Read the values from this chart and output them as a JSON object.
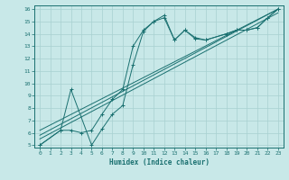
{
  "xlabel": "Humidex (Indice chaleur)",
  "bg_color": "#c8e8e8",
  "line_color": "#1a7070",
  "grid_color": "#a8d0d0",
  "xlim": [
    -0.5,
    23.5
  ],
  "ylim": [
    4.8,
    16.3
  ],
  "xticks": [
    0,
    1,
    2,
    3,
    4,
    5,
    6,
    7,
    8,
    9,
    10,
    11,
    12,
    13,
    14,
    15,
    16,
    17,
    18,
    19,
    20,
    21,
    22,
    23
  ],
  "yticks": [
    5,
    6,
    7,
    8,
    9,
    10,
    11,
    12,
    13,
    14,
    15,
    16
  ],
  "line1_x": [
    0,
    2,
    3,
    4,
    5,
    6,
    7,
    8,
    9,
    10,
    11,
    12,
    13,
    14,
    15,
    16,
    18,
    19,
    20,
    21,
    22,
    23
  ],
  "line1_y": [
    5,
    6.2,
    6.2,
    6.0,
    6.2,
    7.5,
    8.7,
    9.5,
    13.0,
    14.3,
    15.0,
    15.5,
    13.5,
    14.3,
    13.7,
    13.5,
    14.0,
    14.3,
    14.3,
    14.5,
    15.3,
    16.0
  ],
  "line2_x": [
    0,
    2,
    3,
    5,
    6,
    7,
    8,
    9,
    10,
    11,
    12,
    13,
    14,
    15,
    16,
    18,
    19,
    20,
    21,
    22,
    23
  ],
  "line2_y": [
    5,
    6.2,
    9.5,
    5.0,
    6.3,
    7.5,
    8.2,
    11.5,
    14.2,
    15.0,
    15.3,
    13.5,
    14.3,
    13.6,
    13.5,
    14.0,
    14.3,
    14.3,
    14.5,
    15.3,
    16.0
  ],
  "line3_x": [
    0,
    23
  ],
  "line3_y": [
    5.5,
    15.7
  ],
  "line4_x": [
    0,
    23
  ],
  "line4_y": [
    5.8,
    16.0
  ],
  "line5_x": [
    0,
    23
  ],
  "line5_y": [
    6.2,
    16.0
  ]
}
